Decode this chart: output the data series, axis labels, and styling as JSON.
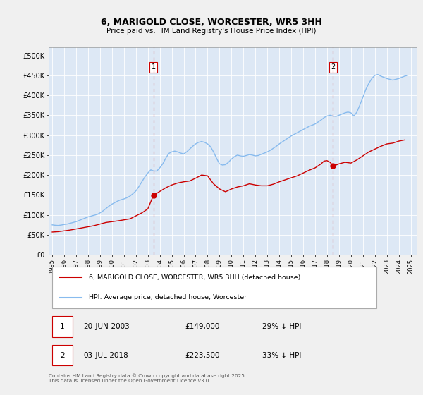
{
  "title": "6, MARIGOLD CLOSE, WORCESTER, WR5 3HH",
  "subtitle": "Price paid vs. HM Land Registry's House Price Index (HPI)",
  "background_color": "#f0f0f0",
  "plot_background_color": "#dde8f5",
  "xlim": [
    1994.7,
    2025.5
  ],
  "ylim": [
    0,
    520000
  ],
  "yticks": [
    0,
    50000,
    100000,
    150000,
    200000,
    250000,
    300000,
    350000,
    400000,
    450000,
    500000
  ],
  "ytick_labels": [
    "£0",
    "£50K",
    "£100K",
    "£150K",
    "£200K",
    "£250K",
    "£300K",
    "£350K",
    "£400K",
    "£450K",
    "£500K"
  ],
  "xticks": [
    1995,
    1996,
    1997,
    1998,
    1999,
    2000,
    2001,
    2002,
    2003,
    2004,
    2005,
    2006,
    2007,
    2008,
    2009,
    2010,
    2011,
    2012,
    2013,
    2014,
    2015,
    2016,
    2017,
    2018,
    2019,
    2020,
    2021,
    2022,
    2023,
    2024,
    2025
  ],
  "red_line_color": "#cc0000",
  "blue_line_color": "#88bbee",
  "marker_color": "#cc0000",
  "vline_color": "#cc0000",
  "grid_color": "#ffffff",
  "transaction1": {
    "date_x": 2003.47,
    "price": 149000,
    "label": "1"
  },
  "transaction2": {
    "date_x": 2018.5,
    "price": 223500,
    "label": "2"
  },
  "legend_label_red": "6, MARIGOLD CLOSE, WORCESTER, WR5 3HH (detached house)",
  "legend_label_blue": "HPI: Average price, detached house, Worcester",
  "table_rows": [
    {
      "num": "1",
      "date": "20-JUN-2003",
      "price": "£149,000",
      "hpi": "29% ↓ HPI"
    },
    {
      "num": "2",
      "date": "03-JUL-2018",
      "price": "£223,500",
      "hpi": "33% ↓ HPI"
    }
  ],
  "footer": "Contains HM Land Registry data © Crown copyright and database right 2025.\nThis data is licensed under the Open Government Licence v3.0.",
  "hpi_data": {
    "years": [
      1995.0,
      1995.25,
      1995.5,
      1995.75,
      1996.0,
      1996.25,
      1996.5,
      1996.75,
      1997.0,
      1997.25,
      1997.5,
      1997.75,
      1998.0,
      1998.25,
      1998.5,
      1998.75,
      1999.0,
      1999.25,
      1999.5,
      1999.75,
      2000.0,
      2000.25,
      2000.5,
      2000.75,
      2001.0,
      2001.25,
      2001.5,
      2001.75,
      2002.0,
      2002.25,
      2002.5,
      2002.75,
      2003.0,
      2003.25,
      2003.5,
      2003.75,
      2004.0,
      2004.25,
      2004.5,
      2004.75,
      2005.0,
      2005.25,
      2005.5,
      2005.75,
      2006.0,
      2006.25,
      2006.5,
      2006.75,
      2007.0,
      2007.25,
      2007.5,
      2007.75,
      2008.0,
      2008.25,
      2008.5,
      2008.75,
      2009.0,
      2009.25,
      2009.5,
      2009.75,
      2010.0,
      2010.25,
      2010.5,
      2010.75,
      2011.0,
      2011.25,
      2011.5,
      2011.75,
      2012.0,
      2012.25,
      2012.5,
      2012.75,
      2013.0,
      2013.25,
      2013.5,
      2013.75,
      2014.0,
      2014.25,
      2014.5,
      2014.75,
      2015.0,
      2015.25,
      2015.5,
      2015.75,
      2016.0,
      2016.25,
      2016.5,
      2016.75,
      2017.0,
      2017.25,
      2017.5,
      2017.75,
      2018.0,
      2018.25,
      2018.5,
      2018.75,
      2019.0,
      2019.25,
      2019.5,
      2019.75,
      2020.0,
      2020.25,
      2020.5,
      2020.75,
      2021.0,
      2021.25,
      2021.5,
      2021.75,
      2022.0,
      2022.25,
      2022.5,
      2022.75,
      2023.0,
      2023.25,
      2023.5,
      2023.75,
      2024.0,
      2024.25,
      2024.5,
      2024.75
    ],
    "values": [
      75000,
      74000,
      73500,
      74500,
      76000,
      77000,
      79000,
      81000,
      83000,
      86000,
      89000,
      92000,
      95000,
      97000,
      99000,
      101000,
      105000,
      110000,
      116000,
      122000,
      127000,
      131000,
      135000,
      138000,
      140000,
      143000,
      147000,
      153000,
      160000,
      171000,
      183000,
      195000,
      205000,
      213000,
      210000,
      210000,
      218000,
      228000,
      242000,
      254000,
      258000,
      260000,
      258000,
      255000,
      253000,
      258000,
      265000,
      272000,
      278000,
      282000,
      284000,
      282000,
      278000,
      271000,
      258000,
      242000,
      228000,
      225000,
      226000,
      232000,
      240000,
      246000,
      250000,
      248000,
      247000,
      249000,
      251000,
      250000,
      248000,
      249000,
      252000,
      255000,
      258000,
      262000,
      267000,
      272000,
      278000,
      283000,
      288000,
      293000,
      298000,
      302000,
      306000,
      310000,
      314000,
      318000,
      322000,
      325000,
      328000,
      333000,
      338000,
      344000,
      348000,
      350000,
      348000,
      347000,
      350000,
      353000,
      356000,
      358000,
      356000,
      348000,
      358000,
      376000,
      395000,
      415000,
      430000,
      442000,
      450000,
      452000,
      448000,
      445000,
      442000,
      440000,
      438000,
      440000,
      442000,
      445000,
      448000,
      450000
    ]
  },
  "price_paid_data": {
    "years": [
      1995.0,
      1995.5,
      1996.5,
      1998.5,
      1999.5,
      2000.5,
      2001.5,
      2002.5,
      2003.0,
      2003.47,
      2004.5,
      2005.0,
      2005.5,
      2006.0,
      2006.5,
      2007.0,
      2007.5,
      2008.0,
      2008.5,
      2009.0,
      2009.5,
      2010.0,
      2010.5,
      2011.0,
      2011.5,
      2012.0,
      2012.5,
      2013.0,
      2013.5,
      2014.0,
      2014.5,
      2015.0,
      2015.5,
      2016.0,
      2016.5,
      2017.0,
      2017.5,
      2017.75,
      2018.0,
      2018.25,
      2018.5,
      2018.75,
      2019.0,
      2019.5,
      2020.0,
      2020.5,
      2021.0,
      2021.5,
      2022.0,
      2022.5,
      2023.0,
      2023.5,
      2024.0,
      2024.5
    ],
    "values": [
      57000,
      58000,
      62000,
      73000,
      81000,
      85000,
      90000,
      105000,
      115000,
      149000,
      168000,
      175000,
      180000,
      183000,
      185000,
      192000,
      200000,
      198000,
      178000,
      165000,
      158000,
      165000,
      170000,
      173000,
      178000,
      175000,
      173000,
      173000,
      177000,
      183000,
      188000,
      193000,
      198000,
      205000,
      212000,
      218000,
      228000,
      235000,
      236000,
      232000,
      223500,
      225000,
      228000,
      232000,
      230000,
      238000,
      248000,
      258000,
      265000,
      272000,
      278000,
      280000,
      285000,
      288000
    ]
  }
}
